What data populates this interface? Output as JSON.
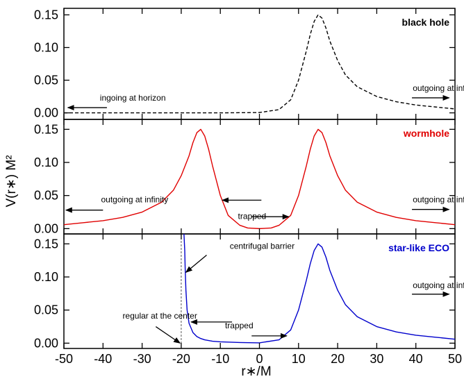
{
  "chart_data": {
    "type": "line",
    "xlabel": "r∗/M",
    "ylabel": "V(r∗) M²",
    "xlim": [
      -50,
      50
    ],
    "xticks": [
      "-50",
      "-40",
      "-30",
      "-20",
      "-10",
      "0",
      "10",
      "20",
      "30",
      "40",
      "50"
    ],
    "yticks": [
      "0.00",
      "0.05",
      "0.10",
      "0.15"
    ],
    "panels": [
      {
        "title": "black hole",
        "color": "#000000",
        "dashed": true,
        "ylim": [
          -0.01,
          0.16
        ],
        "x": [
          -50,
          -20,
          -10,
          0,
          5,
          8,
          10,
          12,
          13,
          14,
          15,
          16,
          17,
          18,
          20,
          22,
          25,
          30,
          35,
          40,
          45,
          50
        ],
        "y": [
          0.0,
          0.0,
          0.0,
          0.0005,
          0.005,
          0.02,
          0.05,
          0.095,
          0.12,
          0.14,
          0.15,
          0.145,
          0.13,
          0.11,
          0.08,
          0.058,
          0.04,
          0.025,
          0.017,
          0.012,
          0.009,
          0.006
        ],
        "annotations": [
          {
            "text": "ingoing at horizon",
            "x": -40.8,
            "y": 0.0185,
            "ax0": -39,
            "ay0": 0.008,
            "ax1": -49,
            "ay1": 0.008
          },
          {
            "text": "outgoing at infinity",
            "x": 39.2,
            "y": 0.0335,
            "ax0": 39,
            "ay0": 0.023,
            "ax1": 48.5,
            "ay1": 0.023
          }
        ]
      },
      {
        "title": "wormhole",
        "color": "#e00000",
        "dashed": false,
        "ylim": [
          -0.008,
          0.165
        ],
        "x": [
          -50,
          -45,
          -40,
          -35,
          -30,
          -25,
          -22,
          -20,
          -18,
          -17,
          -16,
          -15,
          -14,
          -13,
          -12,
          -10,
          -8,
          -5,
          -3,
          0,
          3,
          5,
          8,
          10,
          12,
          13,
          14,
          15,
          16,
          17,
          18,
          20,
          22,
          25,
          30,
          35,
          40,
          45,
          50
        ],
        "y": [
          0.006,
          0.009,
          0.012,
          0.017,
          0.025,
          0.04,
          0.058,
          0.08,
          0.11,
          0.13,
          0.145,
          0.15,
          0.14,
          0.12,
          0.095,
          0.05,
          0.02,
          0.005,
          0.001,
          0.0,
          0.001,
          0.005,
          0.02,
          0.05,
          0.095,
          0.12,
          0.14,
          0.15,
          0.145,
          0.13,
          0.11,
          0.08,
          0.058,
          0.04,
          0.025,
          0.017,
          0.012,
          0.009,
          0.006
        ],
        "annotations": [
          {
            "text": "outgoing at infinity",
            "x": -40.5,
            "y": 0.0395,
            "ax0": -40,
            "ay0": 0.028,
            "ax1": -49.5,
            "ay1": 0.028
          },
          {
            "text": "trapped",
            "x": -5.5,
            "y": 0.0145,
            "ax0": 0.5,
            "ay0": 0.043,
            "ax1": -9.5,
            "ay1": 0.043
          },
          {
            "text": "outgoing at infinity",
            "x": 39.2,
            "y": 0.0395,
            "ax0": 39,
            "ay0": 0.029,
            "ax1": 48.5,
            "ay1": 0.029
          },
          {
            "text": "",
            "x": 0,
            "y": 0,
            "ax0": -2,
            "ay0": 0.018,
            "ax1": 7.5,
            "ay1": 0.018
          }
        ]
      },
      {
        "title": "star-like ECO",
        "color": "#0000cc",
        "dashed": false,
        "ylim": [
          -0.008,
          0.165
        ],
        "x": [
          -19.3,
          -19.1,
          -19,
          -18.8,
          -18.5,
          -18,
          -17,
          -16,
          -15,
          -14,
          -12,
          -10,
          -5,
          0,
          5,
          8,
          10,
          12,
          13,
          14,
          15,
          16,
          17,
          18,
          20,
          22,
          25,
          30,
          35,
          40,
          45,
          50
        ],
        "y": [
          0.165,
          0.14,
          0.115,
          0.08,
          0.05,
          0.03,
          0.016,
          0.01,
          0.007,
          0.005,
          0.003,
          0.002,
          0.001,
          0.0005,
          0.005,
          0.02,
          0.05,
          0.095,
          0.12,
          0.14,
          0.15,
          0.145,
          0.13,
          0.11,
          0.08,
          0.058,
          0.04,
          0.025,
          0.017,
          0.012,
          0.009,
          0.006
        ],
        "vline": -20,
        "annotations": [
          {
            "text": "centrifugal barrier",
            "x": -7.6,
            "y": 0.1425,
            "ax0": -13.5,
            "ay0": 0.133,
            "ax1": -18.8,
            "ay1": 0.107
          },
          {
            "text": "regular at the center",
            "x": -35,
            "y": 0.037,
            "ax0": -26.5,
            "ay0": 0.025,
            "ax1": -20.3,
            "ay1": 0.0
          },
          {
            "text": "trapped",
            "x": -8.8,
            "y": 0.0225,
            "ax0": -7,
            "ay0": 0.032,
            "ax1": -17.5,
            "ay1": 0.032
          },
          {
            "text": "",
            "x": 0,
            "y": 0,
            "ax0": -2,
            "ay0": 0.011,
            "ax1": 7,
            "ay1": 0.011
          },
          {
            "text": "outgoing at infinity",
            "x": 39.2,
            "y": 0.083,
            "ax0": 39,
            "ay0": 0.074,
            "ax1": 48.5,
            "ay1": 0.074
          }
        ]
      }
    ]
  }
}
